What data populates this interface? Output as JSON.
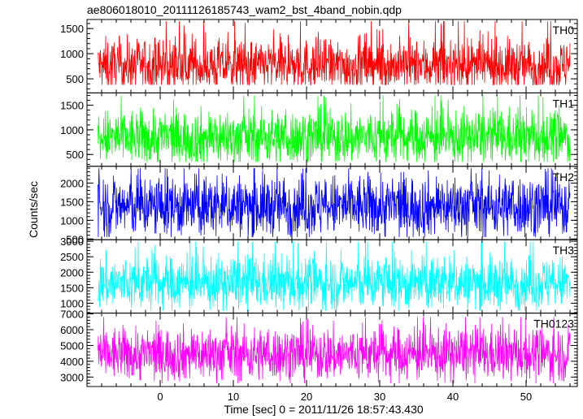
{
  "chart_data": {
    "type": "line",
    "title": "ae806018010_20111126185743_wam2_bst_4band_nobin.qdp",
    "xlabel": "Time [sec] 0 = 2011/11/26 18:57:43.430",
    "ylabel": "Counts/sec",
    "xlim": [
      -10,
      57
    ],
    "x_range_data": [
      -8.5,
      56
    ],
    "x_ticks": [
      0,
      10,
      20,
      30,
      40,
      50
    ],
    "x_tick_labels": [
      "0",
      "10",
      "20",
      "30",
      "40",
      "50"
    ],
    "grid": false,
    "panels": [
      {
        "name": "TH0",
        "color": "#ff0000",
        "ylim": [
          220,
          1680
        ],
        "y_ticks": [
          500,
          1000,
          1500
        ],
        "y_tick_labels": [
          "500",
          "1000",
          "1500"
        ],
        "mean": 760,
        "spread": 260,
        "min": 380,
        "max": 1650
      },
      {
        "name": "TH1",
        "color": "#00ff00",
        "ylim": [
          260,
          1750
        ],
        "y_ticks": [
          500,
          1000,
          1500
        ],
        "y_tick_labels": [
          "500",
          "1000",
          "1500"
        ],
        "mean": 840,
        "spread": 280,
        "min": 350,
        "max": 1700
      },
      {
        "name": "TH2",
        "color": "#0000ff",
        "ylim": [
          480,
          2450
        ],
        "y_ticks": [
          500,
          1000,
          1500,
          2000
        ],
        "y_tick_labels": [
          "500",
          "1000",
          "1500",
          "2000"
        ],
        "mean": 1380,
        "spread": 420,
        "min": 550,
        "max": 2400
      },
      {
        "name": "TH3",
        "color": "#00ffff",
        "ylim": [
          680,
          3050
        ],
        "y_ticks": [
          1000,
          1500,
          2000,
          2500,
          3000
        ],
        "y_tick_labels": [
          "1000",
          "1500",
          "2000",
          "2500",
          "3000"
        ],
        "mean": 1650,
        "spread": 430,
        "min": 750,
        "max": 3000
      },
      {
        "name": "TH0123",
        "color": "#ff00ff",
        "ylim": [
          2400,
          7050
        ],
        "y_ticks": [
          3000,
          4000,
          5000,
          6000,
          7000
        ],
        "y_tick_labels": [
          "3000",
          "4000",
          "5000",
          "6000",
          "7000"
        ],
        "mean": 4450,
        "spread": 850,
        "min": 2600,
        "max": 6800
      }
    ]
  }
}
